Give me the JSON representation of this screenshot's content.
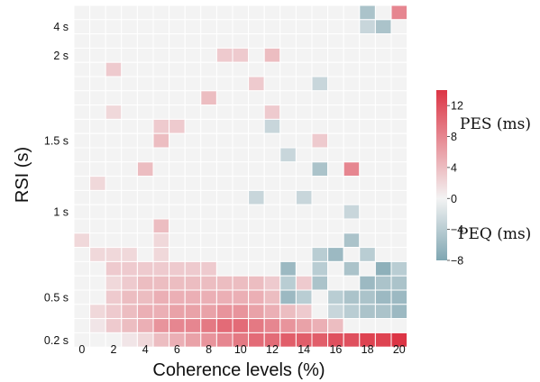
{
  "chart_data": {
    "type": "heatmap",
    "title": "",
    "xlabel": "Coherence levels (%)",
    "ylabel": "RSI (s)",
    "x_tick_labels": [
      "0",
      "2",
      "4",
      "6",
      "8",
      "10",
      "12",
      "14",
      "16",
      "18",
      "20"
    ],
    "y_tick_labels": [
      "4 s",
      "2 s",
      "1.5 s",
      "1 s",
      "0.5 s",
      "0.2 s"
    ],
    "colorbar": {
      "ticks": [
        "12",
        "8",
        "4",
        "0",
        "−4",
        "−8"
      ],
      "range": [
        -8,
        14
      ],
      "label_positive": "PES (ms)",
      "label_negative": "PEQ (ms)",
      "color_positive": "#dc3545",
      "color_negative": "#7fa6b2",
      "color_zero": "#f3f3f3"
    },
    "grid": "white cell borders",
    "n_rows": 24,
    "n_cols": 21,
    "row_order": "top-to-bottom",
    "values": [
      [
        0,
        0,
        0,
        0,
        0,
        0,
        0,
        0,
        0,
        0,
        0,
        0,
        0,
        0,
        0,
        0,
        0,
        0,
        -5,
        0,
        8
      ],
      [
        0,
        0,
        0,
        0,
        0,
        0,
        0,
        0,
        0,
        0,
        0,
        0,
        0,
        0,
        0,
        0,
        0,
        0,
        -3,
        -5,
        0
      ],
      [
        0,
        0,
        0,
        0,
        0,
        0,
        0,
        0,
        0,
        0,
        0,
        0,
        0,
        0,
        0,
        0,
        0,
        0,
        0,
        0,
        0
      ],
      [
        0,
        0,
        0,
        0,
        0,
        0,
        0,
        0,
        0,
        3,
        3,
        0,
        4,
        0,
        0,
        0,
        0,
        0,
        0,
        0,
        0
      ],
      [
        0,
        0,
        3,
        0,
        0,
        0,
        0,
        0,
        0,
        0,
        0,
        0,
        0,
        0,
        0,
        0,
        0,
        0,
        0,
        0,
        0
      ],
      [
        0,
        0,
        0,
        0,
        0,
        0,
        0,
        0,
        0,
        0,
        0,
        3,
        0,
        0,
        0,
        -3,
        0,
        0,
        0,
        0,
        0
      ],
      [
        0,
        0,
        0,
        0,
        0,
        0,
        0,
        0,
        4,
        0,
        0,
        0,
        0,
        0,
        0,
        0,
        0,
        0,
        0,
        0,
        0
      ],
      [
        0,
        0,
        2,
        0,
        0,
        0,
        0,
        0,
        0,
        0,
        0,
        0,
        3,
        0,
        0,
        0,
        0,
        0,
        0,
        0,
        0
      ],
      [
        0,
        0,
        0,
        0,
        0,
        3,
        3,
        0,
        0,
        0,
        0,
        0,
        -3,
        0,
        0,
        0,
        0,
        0,
        0,
        0,
        0
      ],
      [
        0,
        0,
        0,
        0,
        0,
        4,
        0,
        0,
        0,
        0,
        0,
        0,
        0,
        0,
        0,
        3,
        0,
        0,
        0,
        0,
        0
      ],
      [
        0,
        0,
        0,
        0,
        0,
        0,
        0,
        0,
        0,
        0,
        0,
        0,
        0,
        -3,
        0,
        0,
        0,
        0,
        0,
        0,
        0
      ],
      [
        0,
        0,
        0,
        0,
        4,
        0,
        0,
        0,
        0,
        0,
        0,
        0,
        0,
        0,
        0,
        -5,
        0,
        8,
        0,
        0,
        0
      ],
      [
        0,
        2,
        0,
        0,
        0,
        0,
        0,
        0,
        0,
        0,
        0,
        0,
        0,
        0,
        0,
        0,
        0,
        0,
        0,
        0,
        0
      ],
      [
        0,
        0,
        0,
        0,
        0,
        0,
        0,
        0,
        0,
        0,
        0,
        -3,
        0,
        0,
        -3,
        0,
        0,
        0,
        0,
        0,
        0
      ],
      [
        0,
        0,
        0,
        0,
        0,
        0,
        0,
        0,
        0,
        0,
        0,
        0,
        0,
        0,
        0,
        0,
        0,
        -3,
        0,
        0,
        0
      ],
      [
        0,
        0,
        0,
        0,
        0,
        4,
        0,
        0,
        0,
        0,
        0,
        0,
        0,
        0,
        0,
        0,
        0,
        0,
        0,
        0,
        0
      ],
      [
        2,
        0,
        0,
        0,
        0,
        2,
        0,
        0,
        0,
        0,
        0,
        0,
        0,
        0,
        0,
        0,
        0,
        -5,
        0,
        0,
        0
      ],
      [
        0,
        2,
        2,
        2,
        0,
        2,
        0,
        0,
        0,
        0,
        0,
        0,
        0,
        0,
        0,
        -4,
        -6,
        0,
        -4,
        0,
        0
      ],
      [
        0,
        0,
        3,
        3,
        3,
        3,
        3,
        3,
        3,
        0,
        0,
        0,
        0,
        -6,
        0,
        -4,
        0,
        -5,
        0,
        -7,
        -4
      ],
      [
        0,
        0,
        2,
        3,
        4,
        4,
        4,
        4,
        4,
        4,
        4,
        4,
        3,
        -4,
        3,
        -5,
        0,
        0,
        -6,
        -5,
        -5
      ],
      [
        0,
        0,
        3,
        4,
        4,
        5,
        5,
        5,
        5,
        5,
        5,
        5,
        4,
        -6,
        -4,
        0,
        -4,
        -5,
        -5,
        -6,
        -6
      ],
      [
        0,
        2,
        3,
        4,
        5,
        5,
        6,
        6,
        6,
        7,
        7,
        6,
        5,
        4,
        3,
        0,
        -3,
        -4,
        -5,
        -5,
        -6
      ],
      [
        0,
        1,
        3,
        4,
        5,
        7,
        8,
        8,
        9,
        10,
        10,
        9,
        8,
        7,
        6,
        5,
        4,
        0,
        0,
        0,
        0
      ],
      [
        0,
        0,
        0,
        1,
        2,
        4,
        5,
        6,
        7,
        8,
        9,
        10,
        10,
        11,
        11,
        11,
        12,
        12,
        13,
        13,
        14
      ]
    ]
  }
}
